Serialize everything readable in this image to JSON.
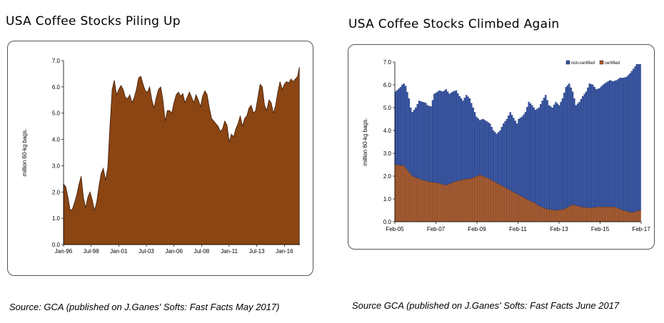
{
  "left": {
    "title": "USA Coffee Stocks Piling Up",
    "source": "Source: GCA (published on J.Ganes' Softs: Fast Facts May 2017)"
  },
  "right": {
    "title": "USA Coffee Stocks Climbed Again",
    "source": "Source GCA (published on J.Ganes' Softs: Fast Facts June 2017"
  },
  "colors": {
    "area_fill": "#8B4513",
    "non_certified": "#3355AA",
    "certified": "#B05A2A"
  },
  "chart_data": [
    {
      "type": "area",
      "ylabel": "million 60-kg bags.",
      "ylim": [
        0,
        7
      ],
      "y_ticks": [
        "0.0",
        "1.0",
        "2.0",
        "3.0",
        "4.0",
        "5.0",
        "6.0",
        "7.0"
      ],
      "x_ticks": [
        "Jan-96",
        "Jul-98",
        "Jan-01",
        "Jul-03",
        "Jan-06",
        "Jul-08",
        "Jan-11",
        "Jul-13",
        "Jan-16"
      ],
      "xlim": [
        1996.0,
        2017.4
      ],
      "grid": false,
      "series": [
        {
          "x": [
            1996.0,
            1996.2,
            1996.4,
            1996.6,
            1996.8,
            1997.0,
            1997.2,
            1997.4,
            1997.6,
            1997.8,
            1998.0,
            1998.2,
            1998.4,
            1998.6,
            1998.8,
            1999.0,
            1999.2,
            1999.4,
            1999.6,
            1999.8,
            2000.0,
            2000.2,
            2000.4,
            2000.6,
            2000.8,
            2001.0,
            2001.2,
            2001.4,
            2001.6,
            2001.8,
            2002.0,
            2002.2,
            2002.4,
            2002.6,
            2002.8,
            2003.0,
            2003.2,
            2003.4,
            2003.6,
            2003.8,
            2004.0,
            2004.2,
            2004.4,
            2004.6,
            2004.8,
            2005.0,
            2005.2,
            2005.4,
            2005.6,
            2005.8,
            2006.0,
            2006.2,
            2006.4,
            2006.6,
            2006.8,
            2007.0,
            2007.2,
            2007.4,
            2007.6,
            2007.8,
            2008.0,
            2008.2,
            2008.4,
            2008.6,
            2008.8,
            2009.0,
            2009.2,
            2009.4,
            2009.6,
            2009.8,
            2010.0,
            2010.2,
            2010.4,
            2010.6,
            2010.8,
            2011.0,
            2011.2,
            2011.4,
            2011.6,
            2011.8,
            2012.0,
            2012.2,
            2012.4,
            2012.6,
            2012.8,
            2013.0,
            2013.2,
            2013.4,
            2013.6,
            2013.8,
            2014.0,
            2014.2,
            2014.4,
            2014.6,
            2014.8,
            2015.0,
            2015.2,
            2015.4,
            2015.6,
            2015.8,
            2016.0,
            2016.2,
            2016.4,
            2016.6,
            2016.8,
            2017.0,
            2017.2,
            2017.35
          ],
          "y": [
            2.3,
            2.2,
            1.8,
            1.3,
            1.35,
            1.6,
            1.9,
            2.3,
            2.6,
            1.8,
            1.4,
            1.8,
            2.0,
            1.7,
            1.3,
            1.6,
            2.2,
            2.7,
            2.9,
            2.45,
            2.9,
            4.5,
            5.9,
            6.25,
            5.7,
            5.9,
            6.05,
            5.9,
            5.6,
            5.55,
            5.7,
            5.4,
            5.6,
            5.9,
            6.35,
            6.4,
            6.1,
            5.85,
            5.8,
            6.0,
            5.5,
            5.2,
            5.6,
            5.9,
            6.0,
            5.5,
            4.7,
            5.1,
            5.1,
            5.0,
            5.4,
            5.7,
            5.8,
            5.65,
            5.75,
            5.4,
            5.6,
            5.8,
            5.6,
            5.4,
            5.7,
            5.5,
            5.25,
            5.65,
            5.85,
            5.7,
            5.2,
            4.8,
            4.7,
            4.6,
            4.5,
            4.3,
            4.4,
            4.7,
            4.55,
            3.9,
            4.2,
            4.1,
            4.4,
            4.6,
            4.9,
            4.5,
            4.8,
            4.9,
            5.2,
            5.3,
            5.0,
            5.1,
            5.6,
            6.1,
            6.0,
            5.3,
            5.1,
            5.5,
            5.4,
            5.0,
            5.3,
            5.8,
            6.2,
            5.9,
            6.1,
            6.2,
            6.15,
            6.3,
            6.2,
            6.3,
            6.4,
            6.75
          ]
        }
      ]
    },
    {
      "type": "bar",
      "stacked": true,
      "ylabel": "million 60-kg bags.",
      "ylim": [
        0,
        7
      ],
      "y_ticks": [
        "0.0",
        "1.0",
        "2.0",
        "3.0",
        "4.0",
        "5.0",
        "6.0",
        "7.0"
      ],
      "x_ticks": [
        "Feb-05",
        "Feb-07",
        "Feb-09",
        "Feb-11",
        "Feb-13",
        "Feb-15",
        "Feb-17"
      ],
      "legend": "top-right",
      "grid": false,
      "n_bars": 146,
      "series": [
        {
          "name": "non-certified",
          "total_curve": {
            "t": [
              0,
              3,
              4,
              5,
              6,
              8,
              9,
              10,
              12,
              14,
              16,
              18,
              19,
              21,
              23,
              26,
              28,
              30,
              32,
              34,
              36,
              38,
              40,
              42,
              44,
              46,
              48,
              50,
              52,
              54,
              56,
              58,
              60,
              62,
              64,
              66,
              68,
              70,
              72,
              73,
              75,
              77,
              79,
              81,
              83,
              85,
              87,
              89,
              91,
              93,
              95,
              97,
              99,
              101,
              103,
              105,
              107,
              109,
              111,
              113,
              115,
              117,
              119,
              121,
              123,
              125,
              127,
              129,
              131,
              133,
              135,
              137,
              139,
              141,
              143,
              145
            ],
            "v": [
              5.7,
              5.9,
              6.0,
              6.05,
              5.95,
              5.4,
              5.0,
              4.8,
              5.0,
              5.3,
              5.25,
              5.2,
              5.1,
              5.05,
              5.6,
              5.75,
              5.7,
              5.8,
              5.6,
              5.7,
              5.75,
              5.5,
              5.3,
              5.55,
              5.4,
              5.0,
              4.6,
              4.45,
              4.5,
              4.4,
              4.3,
              4.0,
              3.85,
              4.0,
              4.3,
              4.5,
              4.8,
              4.55,
              4.3,
              4.5,
              4.6,
              4.8,
              5.25,
              5.1,
              4.9,
              5.0,
              5.3,
              5.55,
              5.1,
              5.0,
              5.25,
              5.1,
              5.4,
              5.9,
              6.05,
              5.7,
              5.1,
              5.25,
              5.5,
              5.7,
              6.05,
              6.0,
              5.8,
              5.85,
              6.0,
              6.1,
              6.2,
              6.15,
              6.2,
              6.3,
              6.3,
              6.35,
              6.5,
              6.7,
              6.9,
              6.9
            ]
          }
        },
        {
          "name": "certified",
          "curve": {
            "t": [
              0,
              5,
              10,
              15,
              20,
              25,
              30,
              35,
              40,
              45,
              50,
              55,
              60,
              65,
              70,
              75,
              80,
              82,
              85,
              90,
              95,
              100,
              105,
              110,
              115,
              120,
              125,
              130,
              135,
              140,
              145
            ],
            "v": [
              2.5,
              2.45,
              2.0,
              1.85,
              1.75,
              1.7,
              1.6,
              1.75,
              1.85,
              1.9,
              2.05,
              1.9,
              1.7,
              1.5,
              1.3,
              1.1,
              0.9,
              0.85,
              0.7,
              0.55,
              0.5,
              0.55,
              0.75,
              0.65,
              0.6,
              0.65,
              0.65,
              0.65,
              0.5,
              0.4,
              0.5
            ]
          }
        }
      ]
    }
  ]
}
